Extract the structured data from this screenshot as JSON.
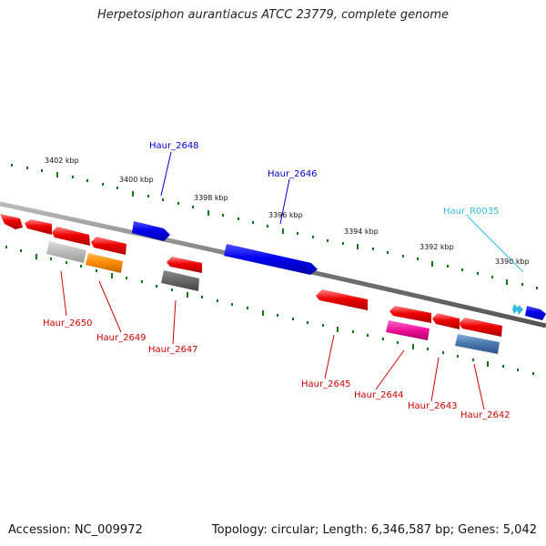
{
  "title": "Herpetosiphon aurantiacus ATCC 23779, complete genome",
  "footer": {
    "accession": "Accession: NC_009972",
    "topology": "Topology: circular; Length: 6,346,587 bp; Genes: 5,042"
  },
  "ruler": {
    "unit_labels": [
      "3402 kbp",
      "3400 kbp",
      "3398 kbp",
      "3396 kbp",
      "3394 kbp",
      "3392 kbp",
      "3390 kbp"
    ]
  },
  "colors": {
    "forward": "#0000ee",
    "reverse": "#ee0000",
    "rna": "#33bbdd",
    "backbone": "#888888",
    "tick": "#117711"
  },
  "genes": [
    {
      "name": "Haur_2648",
      "strand": "forward",
      "label_color": "#0000cc"
    },
    {
      "name": "Haur_2646",
      "strand": "forward",
      "label_color": "#0000cc"
    },
    {
      "name": "Haur_R0035",
      "strand": "forward",
      "label_color": "#33bbdd"
    },
    {
      "name": "Haur_2650",
      "strand": "reverse",
      "label_color": "#cc0000"
    },
    {
      "name": "Haur_2649",
      "strand": "reverse",
      "label_color": "#cc0000"
    },
    {
      "name": "Haur_2647",
      "strand": "reverse",
      "label_color": "#cc0000"
    },
    {
      "name": "Haur_2645",
      "strand": "reverse",
      "label_color": "#cc0000"
    },
    {
      "name": "Haur_2644",
      "strand": "reverse",
      "label_color": "#cc0000"
    },
    {
      "name": "Haur_2643",
      "strand": "reverse",
      "label_color": "#cc0000"
    },
    {
      "name": "Haur_2642",
      "strand": "reverse",
      "label_color": "#cc0000"
    }
  ]
}
